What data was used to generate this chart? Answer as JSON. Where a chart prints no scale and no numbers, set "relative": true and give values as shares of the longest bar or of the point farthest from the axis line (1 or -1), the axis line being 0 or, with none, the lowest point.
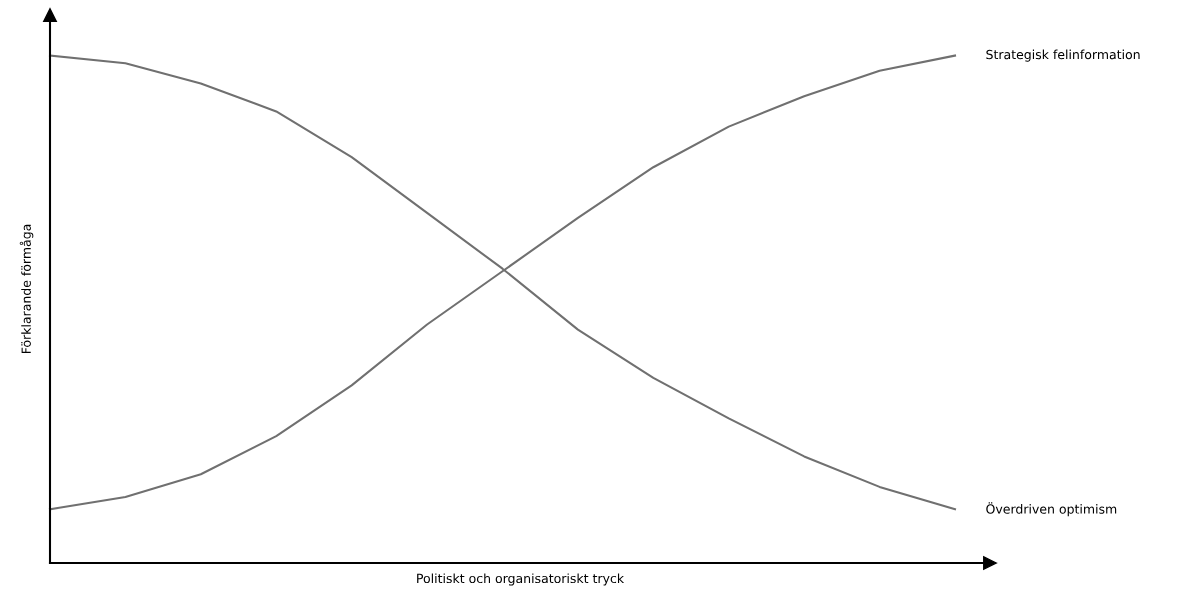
{
  "chart_data": {
    "type": "line",
    "relative": true,
    "xlabel": "Politiskt och organisatoriskt tryck",
    "ylabel": "Förklarande förmåga",
    "categories": [
      null,
      null,
      null,
      null,
      null,
      null,
      null,
      null,
      null,
      null,
      null,
      null,
      null
    ],
    "series": [
      {
        "name": "Överdriven optimism",
        "color": "#707070",
        "values": [
          1.0,
          0.985,
          0.945,
          0.89,
          0.8,
          0.69,
          0.58,
          0.46,
          0.365,
          0.285,
          0.21,
          0.15,
          0.106
        ]
      },
      {
        "name": "Strategisk felinformation",
        "color": "#707070",
        "values": [
          0.106,
          0.13,
          0.175,
          0.25,
          0.35,
          0.47,
          0.575,
          0.68,
          0.78,
          0.86,
          0.92,
          0.97,
          1.0
        ]
      }
    ]
  }
}
